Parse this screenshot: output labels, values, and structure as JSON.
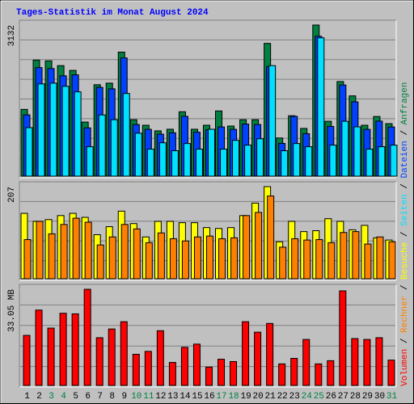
{
  "legend_separator": " / ",
  "chart_data": [
    {
      "type": "bar",
      "title": "Tages-Statistik im Monat August 2024",
      "ylim": [
        0,
        3132
      ],
      "yticks": [
        3132
      ],
      "series": [
        {
          "name": "Anfragen",
          "color": "#008040",
          "values": [
            1384,
            2406,
            2390,
            2291,
            2192,
            1121,
            1895,
            1928,
            2571,
            1170,
            1055,
            939,
            972,
            1335,
            972,
            1055,
            1351,
            1038,
            1170,
            1170,
            2752,
            791,
            1252,
            989,
            3132,
            1137,
            1961,
            1664,
            1055,
            1236,
            1088
          ]
        },
        {
          "name": "Dateien",
          "color": "#0040ff",
          "values": [
            1270,
            2250,
            2230,
            2080,
            2100,
            1000,
            1840,
            1810,
            2450,
            1070,
            970,
            870,
            900,
            1240,
            910,
            960,
            1020,
            970,
            1080,
            1070,
            2270,
            680,
            1240,
            880,
            2900,
            1030,
            1890,
            1540,
            970,
            1140,
            1020
          ]
        },
        {
          "name": "Seiten",
          "color": "#00e0ff",
          "values": [
            1005,
            1912,
            1928,
            1862,
            1747,
            610,
            1269,
            1170,
            1714,
            890,
            560,
            692,
            527,
            676,
            560,
            972,
            560,
            742,
            643,
            775,
            2291,
            527,
            676,
            610,
            2868,
            643,
            1137,
            1022,
            560,
            610,
            643
          ]
        }
      ]
    },
    {
      "type": "bar",
      "ylim": [
        0,
        207
      ],
      "yticks": [
        207
      ],
      "series": [
        {
          "name": "Besuche",
          "color": "#ffff00",
          "values": [
            147,
            129,
            133,
            142,
            147,
            138,
            99,
            117,
            152,
            124,
            94,
            129,
            129,
            126,
            126,
            115,
            113,
            115,
            142,
            170,
            207,
            83,
            129,
            106,
            108,
            135,
            129,
            110,
            120,
            92,
            87
          ]
        },
        {
          "name": "Rechner",
          "color": "#ff8000",
          "values": [
            88,
            129,
            101,
            122,
            136,
            127,
            76,
            94,
            122,
            112,
            81,
            103,
            90,
            85,
            94,
            96,
            90,
            92,
            142,
            149,
            186,
            71,
            90,
            87,
            88,
            81,
            104,
            106,
            78,
            94,
            83
          ]
        }
      ]
    },
    {
      "type": "bar",
      "ylim": [
        0,
        33.05
      ],
      "yticks": [
        {
          "value": 33.05,
          "label": "33.05 MB"
        }
      ],
      "categories": [
        "1",
        "2",
        "3",
        "4",
        "5",
        "6",
        "7",
        "8",
        "9",
        "10",
        "11",
        "12",
        "13",
        "14",
        "15",
        "16",
        "17",
        "18",
        "19",
        "20",
        "21",
        "22",
        "23",
        "24",
        "25",
        "26",
        "27",
        "28",
        "29",
        "30",
        "31"
      ],
      "category_colors": [
        "#000000",
        "#000000",
        "#008040",
        "#008040",
        "#000000",
        "#000000",
        "#000000",
        "#000000",
        "#000000",
        "#008040",
        "#008040",
        "#000000",
        "#000000",
        "#000000",
        "#000000",
        "#000000",
        "#008040",
        "#008040",
        "#000000",
        "#000000",
        "#000000",
        "#000000",
        "#000000",
        "#008040",
        "#008040",
        "#000000",
        "#000000",
        "#000000",
        "#000000",
        "#000000",
        "#008040"
      ],
      "series": [
        {
          "name": "Volumen",
          "color": "#ff0000",
          "values": [
            17.2,
            25.9,
            19.7,
            24.8,
            24.6,
            33.05,
            16.4,
            19.4,
            21.9,
            10.7,
            11.7,
            18.8,
            7.9,
            13.1,
            14.2,
            6.3,
            9.0,
            8.2,
            21.9,
            18.3,
            21.3,
            7.4,
            9.3,
            15.8,
            7.4,
            8.5,
            32.5,
            16.1,
            15.8,
            16.4,
            8.7
          ]
        }
      ]
    }
  ]
}
